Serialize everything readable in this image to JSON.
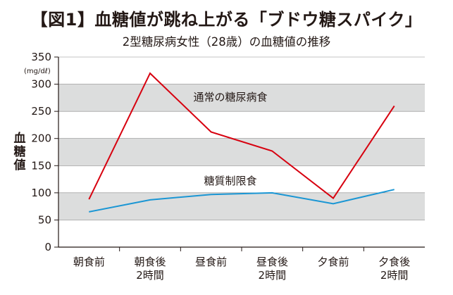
{
  "chart_data": {
    "type": "line",
    "title": "【図1】血糖値が跳ね上がる「ブドウ糖スパイク」",
    "subtitle": "2型糖尿病女性（28歳）の血糖値の推移",
    "ylabel": "血糖値",
    "yunit": "(mg/dℓ)",
    "ylim": [
      0,
      350
    ],
    "yticks": [
      0,
      50,
      100,
      150,
      200,
      250,
      300,
      350
    ],
    "categories": [
      [
        "朝食前"
      ],
      [
        "朝食後",
        "2時間"
      ],
      [
        "昼食前"
      ],
      [
        "昼食後",
        "2時間"
      ],
      [
        "夕食前"
      ],
      [
        "夕食後",
        "2時間"
      ]
    ],
    "series": [
      {
        "name": "通常の糖尿病食",
        "color": "#d7000f",
        "values": [
          88,
          320,
          212,
          177,
          90,
          260
        ]
      },
      {
        "name": "糖質制限食",
        "color": "#1a96d4",
        "values": [
          65,
          87,
          97,
          100,
          80,
          106
        ]
      }
    ],
    "bands": [
      [
        50,
        100
      ],
      [
        150,
        200
      ],
      [
        250,
        300
      ]
    ],
    "band_color": "#dcdddd",
    "grid_color": "#898989",
    "axis_color": "#231815"
  }
}
